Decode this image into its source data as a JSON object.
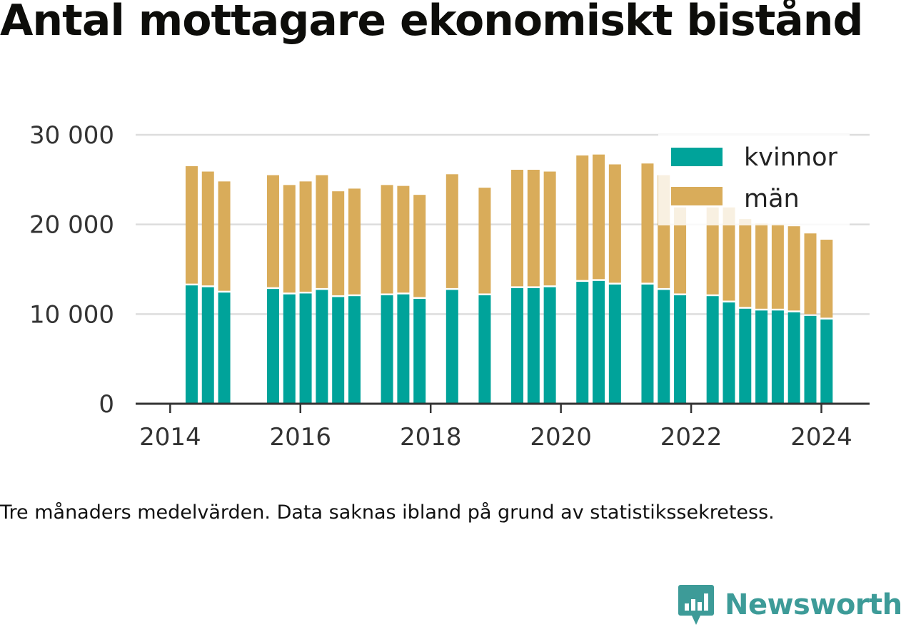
{
  "title": "Antal mottagare ekonomiskt bistånd",
  "note": "Tre månaders medelvärden. Data saknas ibland på grund av statistikssekretess.",
  "brand": "Newsworthy",
  "colors": {
    "kvinnor": "#00a39a",
    "man": "#d9ac5a",
    "grid": "#dddddd",
    "axis": "#333333",
    "brand": "#3d9b98"
  },
  "chart_data": {
    "type": "bar",
    "stacked": true,
    "ylim": [
      0,
      30000
    ],
    "y_ticks": [
      {
        "value": 0,
        "label": "0"
      },
      {
        "value": 10000,
        "label": "10 000"
      },
      {
        "value": 20000,
        "label": "20 000"
      },
      {
        "value": 30000,
        "label": "30 000"
      }
    ],
    "x_range": [
      2013.47,
      2024.74
    ],
    "x_ticks": [
      {
        "value": 2014,
        "label": "2014"
      },
      {
        "value": 2016,
        "label": "2016"
      },
      {
        "value": 2018,
        "label": "2018"
      },
      {
        "value": 2020,
        "label": "2020"
      },
      {
        "value": 2022,
        "label": "2022"
      },
      {
        "value": 2024,
        "label": "2024"
      }
    ],
    "legend_position": "top-right",
    "series": [
      {
        "name": "kvinnor",
        "color": "#00a39a",
        "values": [
          13200,
          13000,
          12400,
          12800,
          12200,
          12300,
          12700,
          11900,
          12000,
          12100,
          12200,
          11700,
          12700,
          12100,
          12900,
          12900,
          13000,
          13600,
          13700,
          13300,
          13300,
          12700,
          12100,
          12000,
          11300,
          10600,
          10400,
          10400,
          10200,
          9800,
          9400
        ]
      },
      {
        "name": "män",
        "color": "#d9ac5a",
        "values": [
          13300,
          12900,
          12400,
          12700,
          12200,
          12500,
          12800,
          11800,
          12000,
          12300,
          12100,
          11600,
          12900,
          12000,
          13200,
          13200,
          12900,
          14100,
          14100,
          13400,
          13500,
          12800,
          9800,
          9900,
          10600,
          10000,
          9700,
          9600,
          9600,
          9200,
          8900
        ]
      }
    ],
    "x": [
      2014.33,
      2014.58,
      2014.83,
      2015.58,
      2015.83,
      2016.08,
      2016.33,
      2016.58,
      2016.83,
      2017.33,
      2017.58,
      2017.83,
      2018.33,
      2018.83,
      2019.33,
      2019.58,
      2019.83,
      2020.33,
      2020.58,
      2020.83,
      2021.33,
      2021.58,
      2021.83,
      2022.33,
      2022.58,
      2022.83,
      2023.08,
      2023.33,
      2023.58,
      2023.83,
      2024.08
    ]
  }
}
